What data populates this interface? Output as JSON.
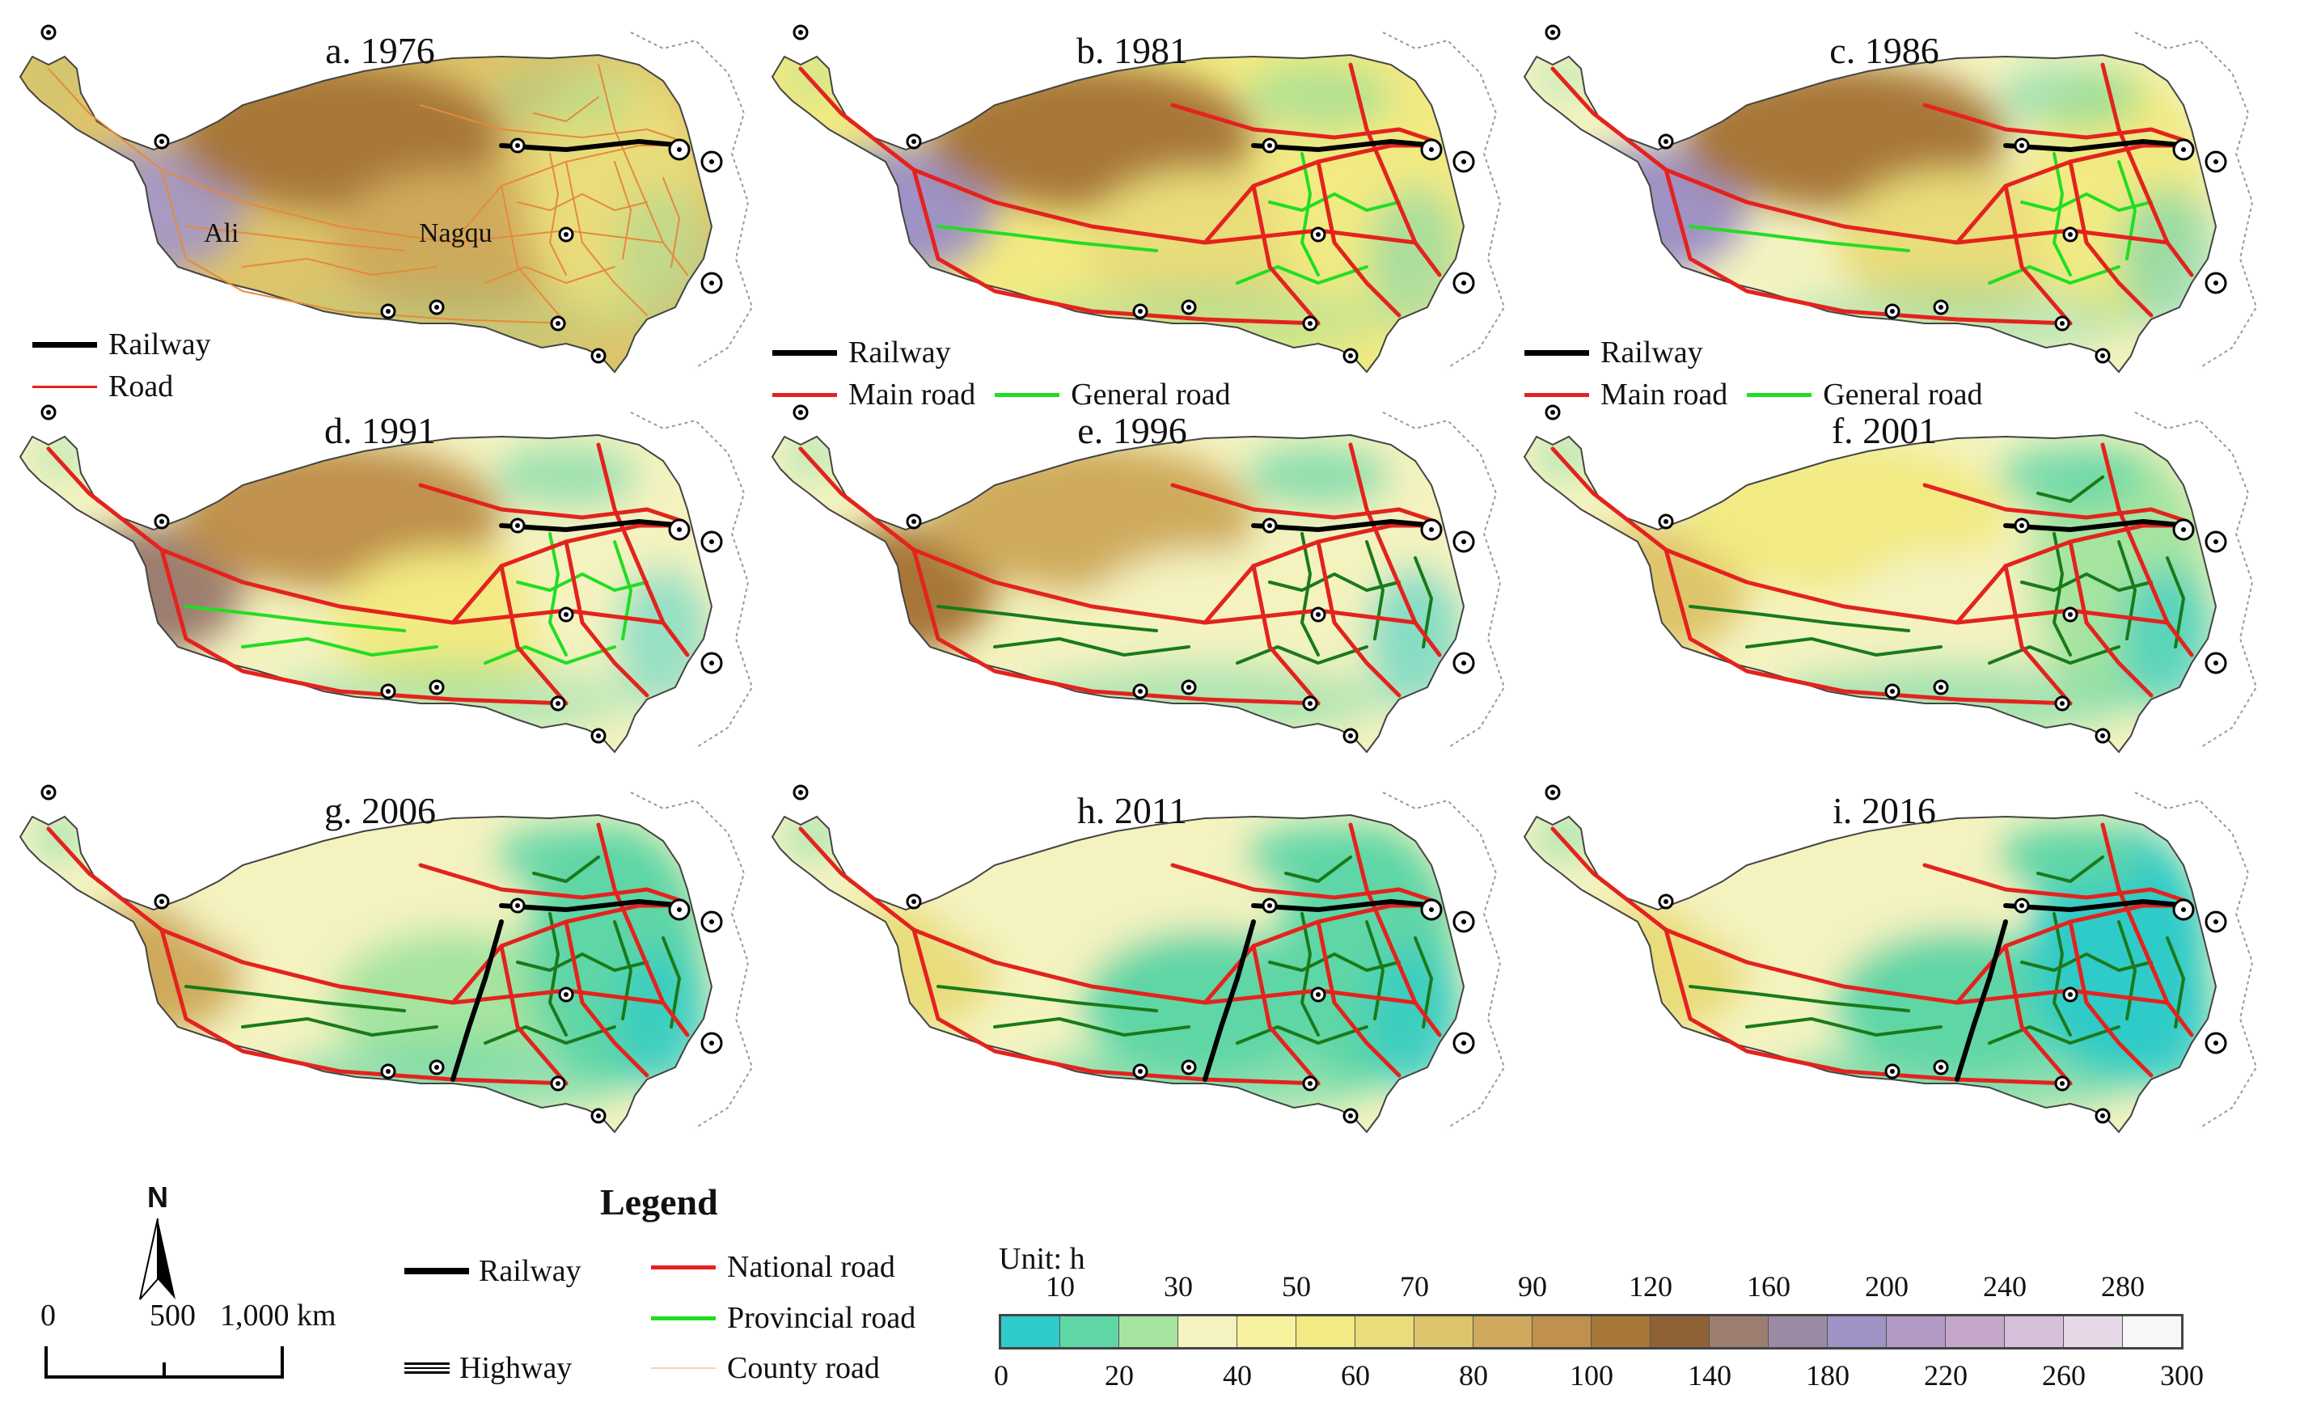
{
  "panels": [
    {
      "id": "a",
      "title": "a. 1976",
      "stage": 0
    },
    {
      "id": "b",
      "title": "b. 1981",
      "stage": 1
    },
    {
      "id": "c",
      "title": "c. 1986",
      "stage": 2
    },
    {
      "id": "d",
      "title": "d. 1991",
      "stage": 3
    },
    {
      "id": "e",
      "title": "e. 1996",
      "stage": 4
    },
    {
      "id": "f",
      "title": "f. 2001",
      "stage": 5
    },
    {
      "id": "g",
      "title": "g. 2006",
      "stage": 6
    },
    {
      "id": "h",
      "title": "h. 2011",
      "stage": 7
    },
    {
      "id": "i",
      "title": "i. 2016",
      "stage": 8
    }
  ],
  "panel_a_legend": {
    "railway": "Railway",
    "road": "Road"
  },
  "panel_bc_legend": {
    "railway": "Railway",
    "main_road": "Main road",
    "general_road": "General road"
  },
  "city_labels": {
    "ali": "Ali",
    "nagqu": "Nagqu"
  },
  "north_label": "N",
  "scale_bar": {
    "zero": "0",
    "mid": "500",
    "end": "1,000 km"
  },
  "legend": {
    "title": "Legend",
    "railway": "Railway",
    "highway": "Highway",
    "national_road": "National road",
    "provincial_road": "Provincial road",
    "county_road": "County road"
  },
  "colorbar": {
    "unit": "Unit: h",
    "upper_ticks": [
      "10",
      "30",
      "50",
      "70",
      "90",
      "120",
      "160",
      "200",
      "240",
      "280"
    ],
    "lower_ticks": [
      "0",
      "20",
      "40",
      "60",
      "80",
      "100",
      "140",
      "180",
      "220",
      "260",
      "300"
    ],
    "colors": [
      "#2ecbc8",
      "#5fd6a6",
      "#a6e4a0",
      "#f4f3c0",
      "#f7f29e",
      "#f2ea82",
      "#e9dc7a",
      "#dec46a",
      "#cfaa5c",
      "#bf914c",
      "#a77737",
      "#8f6236",
      "#9c7e70",
      "#9b8aa4",
      "#9f92c4",
      "#b299c5",
      "#c4a6cb",
      "#d6bfd9",
      "#e6d8e6",
      "#f9f6f9"
    ]
  },
  "colors": {
    "railway": "#000000",
    "national_road": "#e3231e",
    "provincial_road": "#22dd22",
    "general_road_late": "#1a7a1a",
    "county_road": "#e58a3a"
  }
}
